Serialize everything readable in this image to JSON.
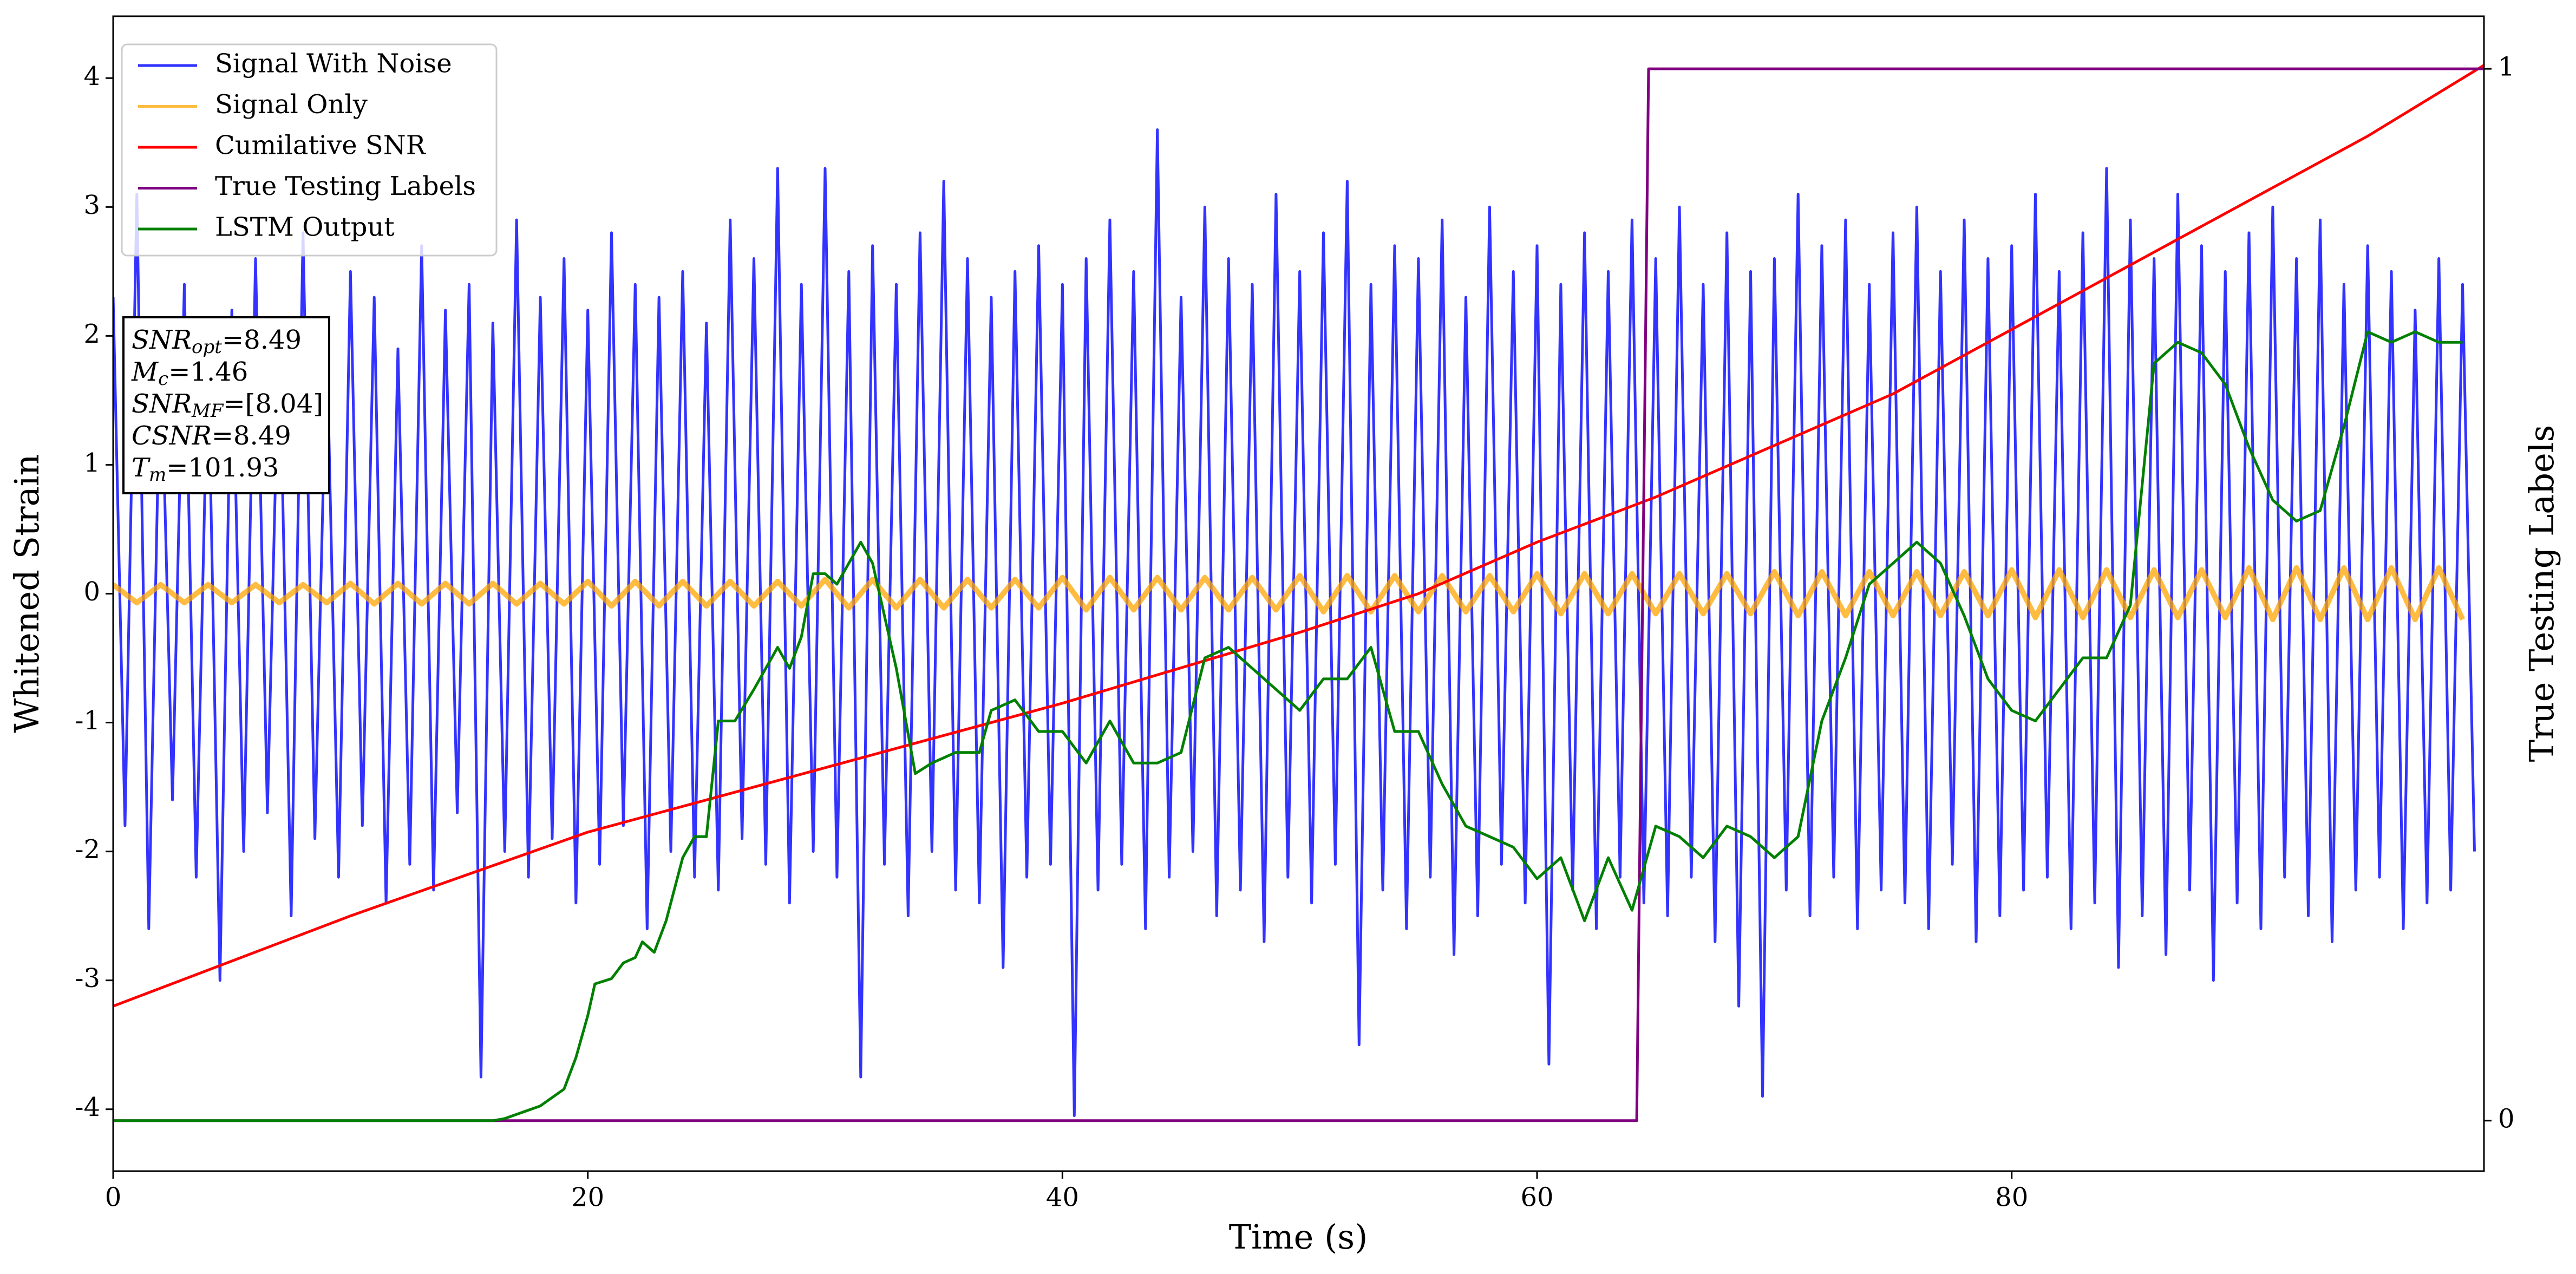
{
  "chart_data": {
    "type": "line",
    "xlabel": "Time (s)",
    "ylabel": "Whitened Strain",
    "y2label": "True Testing Labels",
    "xlim": [
      0,
      99.9
    ],
    "xticks": [
      0,
      20,
      40,
      60,
      80
    ],
    "ylim": [
      -4.48,
      4.48
    ],
    "yticks": [
      -4,
      -3,
      -2,
      -1,
      0,
      1,
      2,
      3,
      4
    ],
    "y2lim": [
      -0.048,
      1.05
    ],
    "y2ticks": [
      0,
      1
    ],
    "legend": "upper left",
    "series": [
      {
        "name": "Signal With Noise",
        "color": "#0000ff",
        "opacity": 0.8,
        "x": [
          0,
          0.5,
          1,
          1.5,
          2,
          2.5,
          3,
          3.5,
          4,
          4.5,
          5,
          5.5,
          6,
          6.5,
          7,
          7.5,
          8,
          8.5,
          9,
          9.5,
          10,
          10.5,
          11,
          11.5,
          12,
          12.5,
          13,
          13.5,
          14,
          14.5,
          15,
          15.5,
          16,
          16.5,
          17,
          17.5,
          18,
          18.5,
          19,
          19.5,
          20,
          20.5,
          21,
          21.5,
          22,
          22.5,
          23,
          23.5,
          24,
          24.5,
          25,
          25.5,
          26,
          26.5,
          27,
          27.5,
          28,
          28.5,
          29,
          29.5,
          30,
          30.5,
          31,
          31.5,
          32,
          32.5,
          33,
          33.5,
          34,
          34.5,
          35,
          35.5,
          36,
          36.5,
          37,
          37.5,
          38,
          38.5,
          39,
          39.5,
          40,
          40.5,
          41,
          41.5,
          42,
          42.5,
          43,
          43.5,
          44,
          44.5,
          45,
          45.5,
          46,
          46.5,
          47,
          47.5,
          48,
          48.5,
          49,
          49.5,
          50,
          50.5,
          51,
          51.5,
          52,
          52.5,
          53,
          53.5,
          54,
          54.5,
          55,
          55.5,
          56,
          56.5,
          57,
          57.5,
          58,
          58.5,
          59,
          59.5,
          60,
          60.5,
          61,
          61.5,
          62,
          62.5,
          63,
          63.5,
          64,
          64.5,
          65,
          65.5,
          66,
          66.5,
          67,
          67.5,
          68,
          68.5,
          69,
          69.5,
          70,
          70.5,
          71,
          71.5,
          72,
          72.5,
          73,
          73.5,
          74,
          74.5,
          75,
          75.5,
          76,
          76.5,
          77,
          77.5,
          78,
          78.5,
          79,
          79.5,
          80,
          80.5,
          81,
          81.5,
          82,
          82.5,
          83,
          83.5,
          84,
          84.5,
          85,
          85.5,
          86,
          86.5,
          87,
          87.5,
          88,
          88.5,
          89,
          89.5,
          90,
          90.5,
          91,
          91.5,
          92,
          92.5,
          93,
          93.5,
          94,
          94.5,
          95,
          95.5,
          96,
          96.5,
          97,
          97.5,
          98,
          98.5,
          99,
          99.5
        ],
        "values": [
          2.3,
          -1.8,
          3.1,
          -2.6,
          2.0,
          -1.6,
          2.4,
          -2.2,
          1.9,
          -3.0,
          2.2,
          -2.0,
          2.6,
          -1.7,
          2.1,
          -2.5,
          2.8,
          -1.9,
          2.0,
          -2.2,
          2.5,
          -1.8,
          2.3,
          -2.4,
          1.9,
          -2.1,
          2.7,
          -2.3,
          2.2,
          -1.7,
          2.4,
          -3.75,
          2.1,
          -2.0,
          2.9,
          -2.2,
          2.3,
          -1.9,
          2.6,
          -2.4,
          2.2,
          -2.1,
          2.8,
          -1.8,
          2.4,
          -2.6,
          2.3,
          -2.0,
          2.5,
          -2.2,
          2.1,
          -2.3,
          2.9,
          -1.9,
          2.6,
          -2.1,
          3.3,
          -2.4,
          2.4,
          -2.0,
          3.3,
          -2.2,
          2.5,
          -3.75,
          2.7,
          -2.1,
          2.4,
          -2.5,
          2.8,
          -2.0,
          3.2,
          -2.3,
          2.6,
          -2.4,
          2.3,
          -2.9,
          2.5,
          -2.2,
          2.7,
          -2.1,
          2.4,
          -4.05,
          2.6,
          -2.3,
          2.9,
          -2.1,
          2.5,
          -2.6,
          3.6,
          -2.2,
          2.3,
          -2.0,
          3.0,
          -2.5,
          2.6,
          -2.3,
          2.4,
          -2.7,
          3.1,
          -2.2,
          2.5,
          -2.4,
          2.8,
          -2.1,
          3.2,
          -3.5,
          2.4,
          -2.3,
          2.7,
          -2.6,
          2.6,
          -2.2,
          2.9,
          -2.8,
          2.3,
          -2.5,
          3.0,
          -2.1,
          2.5,
          -2.4,
          2.7,
          -3.65,
          2.4,
          -2.3,
          2.8,
          -2.6,
          2.5,
          -2.2,
          2.9,
          -2.4,
          2.6,
          -2.5,
          3.0,
          -2.2,
          2.4,
          -2.7,
          2.8,
          -3.2,
          2.5,
          -3.9,
          2.6,
          -2.3,
          3.1,
          -2.5,
          2.7,
          -2.2,
          2.9,
          -2.6,
          2.4,
          -2.3,
          2.8,
          -2.4,
          3.0,
          -2.6,
          2.5,
          -2.1,
          2.9,
          -2.7,
          2.6,
          -2.5,
          2.7,
          -2.3,
          3.1,
          -2.2,
          2.5,
          -2.6,
          2.8,
          -2.4,
          3.3,
          -2.9,
          2.9,
          -2.5,
          2.6,
          -2.8,
          3.1,
          -2.3,
          2.7,
          -3.0,
          2.5,
          -2.4,
          2.8,
          -2.6,
          3.0,
          -2.2,
          2.6,
          -2.5,
          2.9,
          -2.7,
          2.4,
          -2.3,
          2.7,
          -2.2,
          2.5,
          -2.6,
          2.2,
          -2.4,
          2.6,
          -2.3,
          2.4,
          -2.0
        ]
      },
      {
        "name": "Signal Only",
        "color": "#ffa500",
        "opacity": 0.75,
        "x": [
          0,
          1,
          2,
          3,
          4,
          5,
          6,
          7,
          8,
          9,
          10,
          11,
          12,
          13,
          14,
          15,
          16,
          17,
          18,
          19,
          20,
          21,
          22,
          23,
          24,
          25,
          26,
          27,
          28,
          29,
          30,
          31,
          32,
          33,
          34,
          35,
          36,
          37,
          38,
          39,
          40,
          41,
          42,
          43,
          44,
          45,
          46,
          47,
          48,
          49,
          50,
          51,
          52,
          53,
          54,
          55,
          56,
          57,
          58,
          59,
          60,
          61,
          62,
          63,
          64,
          65,
          66,
          67,
          68,
          69,
          70,
          71,
          72,
          73,
          74,
          75,
          76,
          77,
          78,
          79,
          80,
          81,
          82,
          83,
          84,
          85,
          86,
          87,
          88,
          89,
          90,
          91,
          92,
          93,
          94,
          95,
          96,
          97,
          98,
          99
        ],
        "values": [
          0.07,
          -0.07,
          0.07,
          -0.07,
          0.07,
          -0.07,
          0.07,
          -0.07,
          0.07,
          -0.07,
          0.08,
          -0.08,
          0.08,
          -0.08,
          0.08,
          -0.08,
          0.08,
          -0.08,
          0.08,
          -0.08,
          0.095,
          -0.095,
          0.095,
          -0.095,
          0.095,
          -0.095,
          0.095,
          -0.095,
          0.095,
          -0.095,
          0.11,
          -0.11,
          0.11,
          -0.11,
          0.11,
          -0.11,
          0.11,
          -0.11,
          0.11,
          -0.11,
          0.125,
          -0.125,
          0.125,
          -0.125,
          0.125,
          -0.125,
          0.125,
          -0.125,
          0.125,
          -0.125,
          0.14,
          -0.14,
          0.14,
          -0.14,
          0.14,
          -0.14,
          0.14,
          -0.14,
          0.14,
          -0.14,
          0.155,
          -0.155,
          0.155,
          -0.155,
          0.155,
          -0.155,
          0.155,
          -0.155,
          0.155,
          -0.155,
          0.17,
          -0.17,
          0.17,
          -0.17,
          0.17,
          -0.17,
          0.17,
          -0.17,
          0.17,
          -0.17,
          0.185,
          -0.185,
          0.185,
          -0.185,
          0.185,
          -0.185,
          0.185,
          -0.185,
          0.185,
          -0.185,
          0.2,
          -0.2,
          0.2,
          -0.2,
          0.2,
          -0.2,
          0.2,
          -0.2,
          0.2,
          -0.2
        ]
      },
      {
        "name": "Cumilative SNR",
        "color": "#ff0000",
        "opacity": 1,
        "x": [
          0,
          5,
          10,
          20,
          30,
          40,
          50,
          55,
          60,
          65,
          70,
          75,
          80,
          85,
          90,
          95,
          99.9
        ],
        "values": [
          -3.2,
          -2.85,
          -2.5,
          -1.85,
          -1.35,
          -0.85,
          -0.3,
          0,
          0.4,
          0.75,
          1.15,
          1.55,
          2.05,
          2.55,
          3.05,
          3.55,
          4.1
        ]
      },
      {
        "name": "True Testing Labels",
        "color": "#800080",
        "opacity": 1,
        "axis": "y2",
        "x": [
          0,
          64.2,
          64.7,
          99.9
        ],
        "values": [
          0,
          0,
          1,
          1
        ]
      },
      {
        "name": "LSTM Output",
        "color": "#008000",
        "opacity": 1,
        "axis": "y2",
        "x": [
          0,
          16,
          16.5,
          18,
          19,
          19.5,
          20,
          20.3,
          21,
          21.5,
          22,
          22.3,
          22.8,
          23.3,
          24,
          24.5,
          25,
          25.5,
          26.2,
          27,
          27.5,
          28,
          28.5,
          29,
          29.5,
          30,
          30.5,
          31.5,
          32,
          33,
          33.8,
          34.5,
          35.5,
          36.5,
          37,
          38,
          39,
          40,
          41,
          42,
          43,
          44,
          45,
          46,
          47,
          48,
          49,
          50,
          51,
          52,
          53,
          54,
          55,
          56,
          57,
          58,
          59,
          60,
          61,
          62,
          63,
          64,
          65,
          66,
          67,
          68,
          69,
          70,
          71,
          72,
          73,
          74,
          75,
          76,
          77,
          78,
          79,
          80,
          81,
          82,
          83,
          84,
          85,
          86,
          87,
          88,
          89,
          90,
          91,
          92,
          93,
          94,
          95,
          96,
          97,
          98,
          99
        ],
        "values": [
          0,
          0,
          0.002,
          0.014,
          0.03,
          0.06,
          0.1,
          0.13,
          0.135,
          0.15,
          0.155,
          0.17,
          0.16,
          0.19,
          0.25,
          0.27,
          0.27,
          0.38,
          0.38,
          0.41,
          0.43,
          0.45,
          0.43,
          0.46,
          0.52,
          0.52,
          0.51,
          0.55,
          0.53,
          0.43,
          0.33,
          0.34,
          0.35,
          0.35,
          0.39,
          0.4,
          0.37,
          0.37,
          0.34,
          0.38,
          0.34,
          0.34,
          0.35,
          0.44,
          0.45,
          0.43,
          0.41,
          0.39,
          0.42,
          0.42,
          0.45,
          0.37,
          0.37,
          0.32,
          0.28,
          0.27,
          0.26,
          0.23,
          0.25,
          0.19,
          0.25,
          0.2,
          0.28,
          0.27,
          0.25,
          0.28,
          0.27,
          0.25,
          0.27,
          0.38,
          0.44,
          0.51,
          0.53,
          0.55,
          0.53,
          0.48,
          0.42,
          0.39,
          0.38,
          0.41,
          0.44,
          0.44,
          0.49,
          0.72,
          0.74,
          0.73,
          0.7,
          0.64,
          0.59,
          0.57,
          0.58,
          0.66,
          0.75,
          0.74,
          0.75,
          0.74,
          0.74
        ]
      }
    ],
    "annotations": [
      {
        "name": "SNR",
        "sub": "opt",
        "value": "=8.49"
      },
      {
        "name": "M",
        "sub": "c",
        "value": "=1.46"
      },
      {
        "name": "SNR",
        "sub": "MF",
        "value": "=[8.04]"
      },
      {
        "name": "CSNR",
        "value": "=8.49"
      },
      {
        "name": "T",
        "sub": "m",
        "value": "=101.93"
      }
    ]
  }
}
